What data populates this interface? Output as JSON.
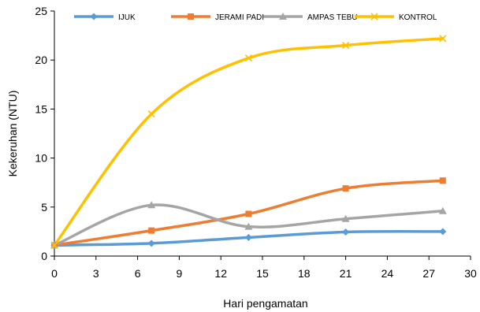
{
  "chart_data": {
    "type": "line",
    "title": "",
    "xlabel": "Hari pengamatan",
    "ylabel": "Kekeruhan (NTU)",
    "xlim": [
      0,
      30
    ],
    "ylim": [
      0,
      25
    ],
    "xticks": [
      0,
      3,
      6,
      9,
      12,
      15,
      18,
      21,
      24,
      27,
      30
    ],
    "yticks": [
      0,
      5,
      10,
      15,
      20,
      25
    ],
    "grid": false,
    "smooth": true,
    "legend_position": "top",
    "series": [
      {
        "name": "IJUK",
        "color": "#5B9BD5",
        "marker": "diamond",
        "x": [
          0,
          7,
          14,
          21,
          28
        ],
        "y": [
          1.1,
          1.3,
          1.9,
          2.45,
          2.5
        ]
      },
      {
        "name": "JERAMI PADI",
        "color": "#ED7D31",
        "marker": "square",
        "x": [
          0,
          7,
          14,
          21,
          28
        ],
        "y": [
          1.1,
          2.6,
          4.3,
          6.9,
          7.7
        ]
      },
      {
        "name": "AMPAS TEBU",
        "color": "#A5A5A5",
        "marker": "triangle",
        "x": [
          0,
          7,
          14,
          21,
          28
        ],
        "y": [
          1.1,
          5.2,
          3.0,
          3.8,
          4.6
        ]
      },
      {
        "name": "KONTROL",
        "color": "#FFC000",
        "marker": "x",
        "x": [
          0,
          7,
          14,
          21,
          28
        ],
        "y": [
          1.1,
          14.5,
          20.2,
          21.5,
          22.2
        ]
      }
    ]
  }
}
